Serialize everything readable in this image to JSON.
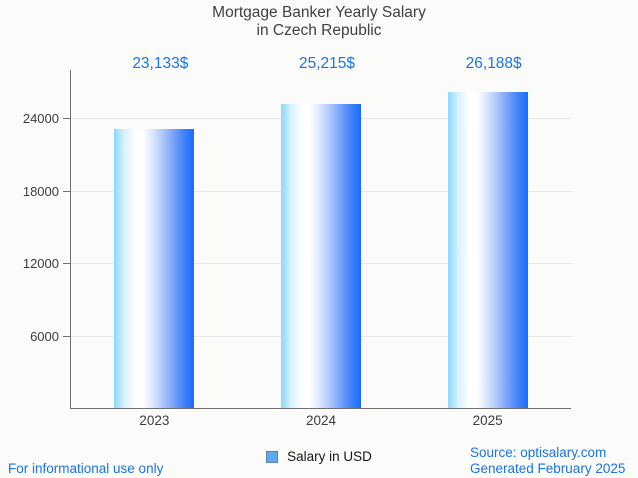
{
  "chart": {
    "title_line1": "Mortgage Banker Yearly Salary",
    "title_line2": "in Czech Republic"
  },
  "chart_data": {
    "type": "bar",
    "title": "Mortgage Banker Yearly Salary in Czech Republic",
    "categories": [
      "2023",
      "2024",
      "2025"
    ],
    "series": [
      {
        "name": "Salary in USD",
        "values": [
          23133,
          25215,
          26188
        ]
      }
    ],
    "value_labels": [
      "23,133$",
      "25,215$",
      "26,188$"
    ],
    "y_ticks": [
      6000,
      12000,
      18000,
      24000
    ],
    "ylim": [
      0,
      28000
    ],
    "grid": true,
    "legend_position": "bottom",
    "colors": {
      "value_label": "#1a73e8",
      "bar_gradient_left": "#8ad7fb",
      "bar_gradient_mid": "#ffffff",
      "bar_gradient_right": "#1a6cfd",
      "axis": "#6f6f6f",
      "gridline": "#e8e8e8",
      "legend_swatch_fill": "#5fa8f0",
      "legend_swatch_border": "#5580a8"
    }
  },
  "legend": {
    "label": "Salary in USD"
  },
  "footer": {
    "left": "For informational use only",
    "source": "Source: optisalary.com",
    "generated": "Generated February 2025"
  }
}
